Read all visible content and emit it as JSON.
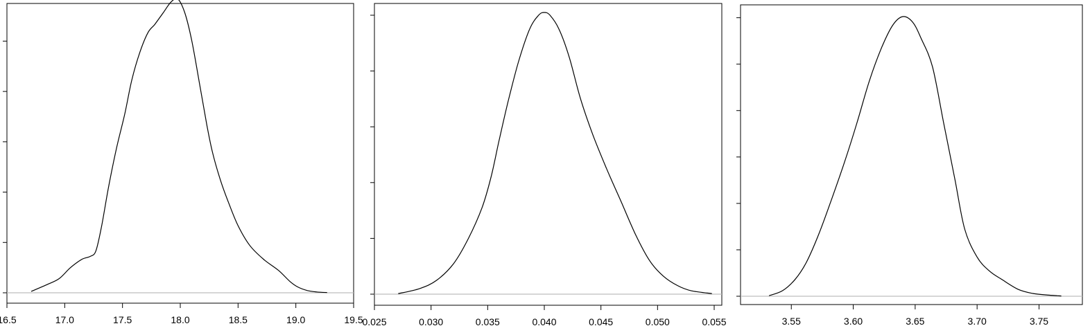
{
  "chart_data": [
    {
      "type": "line",
      "title": "",
      "xlabel": "",
      "ylabel": "",
      "xlim": [
        16.5,
        19.5
      ],
      "ylim": [
        0,
        1
      ],
      "xticks": [
        16.5,
        17.0,
        17.5,
        18.0,
        18.5,
        19.0,
        19.5
      ],
      "xtick_labels": [
        "16.5",
        "17.0",
        "17.5",
        "18.0",
        "18.5",
        "19.0",
        "19.5"
      ],
      "yticks": [
        0,
        0.18,
        0.36,
        0.54,
        0.72,
        0.9
      ],
      "ytick_labels": [
        "",
        "",
        "",
        "",
        "",
        ""
      ],
      "grid": false,
      "series": [
        {
          "x": [
            16.71,
            16.85,
            16.95,
            17.05,
            17.15,
            17.22,
            17.27,
            17.32,
            17.38,
            17.45,
            17.52,
            17.58,
            17.65,
            17.72,
            17.78,
            17.85,
            17.92,
            17.98,
            18.04,
            18.1,
            18.17,
            18.23,
            18.28,
            18.35,
            18.42,
            18.5,
            18.6,
            18.72,
            18.85,
            18.95,
            19.02,
            19.1,
            19.18,
            19.27
          ],
          "y": [
            0.005,
            0.03,
            0.05,
            0.09,
            0.12,
            0.13,
            0.15,
            0.24,
            0.38,
            0.52,
            0.64,
            0.76,
            0.86,
            0.93,
            0.96,
            1.0,
            1.04,
            1.05,
            1.0,
            0.9,
            0.74,
            0.6,
            0.5,
            0.4,
            0.32,
            0.24,
            0.17,
            0.12,
            0.08,
            0.04,
            0.02,
            0.008,
            0.003,
            0.001
          ]
        }
      ]
    },
    {
      "type": "line",
      "title": "",
      "xlabel": "",
      "ylabel": "",
      "xlim": [
        0.025,
        0.055
      ],
      "ylim": [
        0,
        1
      ],
      "xticks": [
        0.025,
        0.03,
        0.035,
        0.04,
        0.045,
        0.05,
        0.055
      ],
      "xtick_labels": [
        "0.025",
        "0.030",
        "0.035",
        "0.040",
        "0.045",
        "0.050",
        "0.055"
      ],
      "yticks": [
        0,
        0.2,
        0.4,
        0.6,
        0.8,
        1.0
      ],
      "ytick_labels": [
        "",
        "",
        "",
        "",
        "",
        ""
      ],
      "grid": false,
      "series": [
        {
          "x": [
            0.0271,
            0.029,
            0.0305,
            0.032,
            0.0333,
            0.0345,
            0.0353,
            0.036,
            0.0368,
            0.0377,
            0.0387,
            0.0395,
            0.04,
            0.0405,
            0.0413,
            0.0422,
            0.0432,
            0.0443,
            0.0455,
            0.0468,
            0.0481,
            0.0493,
            0.0505,
            0.0518,
            0.053,
            0.0548
          ],
          "y": [
            0.002,
            0.02,
            0.05,
            0.11,
            0.2,
            0.31,
            0.42,
            0.55,
            0.69,
            0.83,
            0.95,
            1.0,
            1.01,
            1.0,
            0.95,
            0.85,
            0.7,
            0.57,
            0.45,
            0.33,
            0.21,
            0.12,
            0.065,
            0.03,
            0.012,
            0.002
          ]
        }
      ]
    },
    {
      "type": "line",
      "title": "",
      "xlabel": "",
      "ylabel": "",
      "xlim": [
        3.509,
        3.785
      ],
      "ylim": [
        0,
        1
      ],
      "xticks": [
        3.55,
        3.6,
        3.65,
        3.7,
        3.75
      ],
      "xtick_labels": [
        "3.55",
        "3.60",
        "3.65",
        "3.70",
        "3.75"
      ],
      "yticks": [
        0,
        0.166,
        0.332,
        0.498,
        0.664,
        0.83,
        0.996
      ],
      "ytick_labels": [
        "",
        "",
        "",
        "",
        "",
        "",
        ""
      ],
      "grid": false,
      "series": [
        {
          "x": [
            3.532,
            3.543,
            3.553,
            3.562,
            3.572,
            3.582,
            3.593,
            3.603,
            3.613,
            3.623,
            3.632,
            3.64,
            3.648,
            3.655,
            3.664,
            3.673,
            3.682,
            3.69,
            3.7,
            3.71,
            3.72,
            3.733,
            3.745,
            3.758,
            3.768
          ],
          "y": [
            0.002,
            0.02,
            0.06,
            0.12,
            0.22,
            0.34,
            0.48,
            0.62,
            0.77,
            0.89,
            0.97,
            1.0,
            0.98,
            0.92,
            0.82,
            0.62,
            0.42,
            0.24,
            0.14,
            0.09,
            0.06,
            0.025,
            0.01,
            0.004,
            0.001
          ]
        }
      ]
    }
  ]
}
